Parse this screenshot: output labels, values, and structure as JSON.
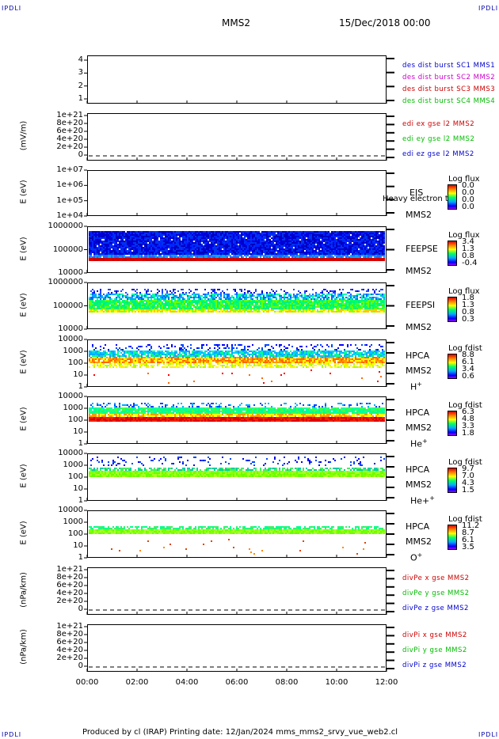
{
  "corners": {
    "tl": "IPDLI",
    "tr": "IPDLI",
    "bl": "IPDLI",
    "br": "IPDLI"
  },
  "header": {
    "spacecraft": "MMS2",
    "datetime": "15/Dec/2018 00:00"
  },
  "footer": "Produced by cl (IRAP)   Printing date: 12/Jan/2024   mms_mms2_srvy_vue_web2.cl",
  "chart_data": [
    {
      "id": "p1",
      "type": "line",
      "ylabel": "",
      "yticks": [
        "4",
        "3",
        "2",
        "1"
      ],
      "legend": [
        {
          "text": "des dist burst SC1 MMS1",
          "color": "#0000cc"
        },
        {
          "text": "des dist burst SC2 MMS2",
          "color": "#cc00cc"
        },
        {
          "text": "des dist burst SC3 MMS3",
          "color": "#cc0000"
        },
        {
          "text": "des dist burst SC4 MMS4",
          "color": "#00bb00"
        }
      ]
    },
    {
      "id": "p2",
      "type": "line",
      "ylabel": "(mV/m)",
      "yticks": [
        "1e+21",
        "8e+20",
        "6e+20",
        "4e+20",
        "2e+20",
        "0"
      ],
      "legend": [
        {
          "text": "edi ex gse l2 MMS2",
          "color": "#cc0000"
        },
        {
          "text": "edi ey gse l2 MMS2",
          "color": "#00bb00"
        },
        {
          "text": "edi ez gse l2 MMS2",
          "color": "#0000cc"
        }
      ]
    },
    {
      "id": "p3",
      "type": "heatmap",
      "ylabel": "E (eV)",
      "yticks": [
        "1e+07",
        "1e+06",
        "1e+05",
        "1e+04"
      ],
      "instrument": "EIS",
      "subtitle": "Heavy electron to",
      "sc": "MMS2",
      "cbar_title": "Log flux",
      "cbar": [
        "0.0",
        "0.0",
        "0.0",
        "0.0"
      ]
    },
    {
      "id": "p4",
      "type": "heatmap",
      "ylabel": "E (eV)",
      "yticks": [
        "1000000",
        "100000",
        "10000"
      ],
      "instrument": "FEEPSE",
      "sc": "MMS2",
      "cbar_title": "Log flux",
      "cbar": [
        "3.4",
        "1.3",
        "0.8",
        "-0.4"
      ]
    },
    {
      "id": "p5",
      "type": "heatmap",
      "ylabel": "E (eV)",
      "yticks": [
        "1000000",
        "100000",
        "10000"
      ],
      "instrument": "FEEPSI",
      "sc": "MMS2",
      "cbar_title": "Log flux",
      "cbar": [
        "1.8",
        "1.3",
        "0.8",
        "0.3"
      ]
    },
    {
      "id": "p6",
      "type": "heatmap",
      "ylabel": "E (eV)",
      "yticks": [
        "10000",
        "1000",
        "100",
        "10",
        "1"
      ],
      "instrument": "HPCA",
      "sc": "MMS2",
      "species": "H+",
      "cbar_title": "Log fdist",
      "cbar": [
        "8.8",
        "6.1",
        "3.4",
        "0.6"
      ]
    },
    {
      "id": "p7",
      "type": "heatmap",
      "ylabel": "E (eV)",
      "yticks": [
        "10000",
        "1000",
        "100",
        "10",
        "1"
      ],
      "instrument": "HPCA",
      "sc": "MMS2",
      "species": "He+",
      "cbar_title": "Log fdist",
      "cbar": [
        "6.3",
        "4.8",
        "3.3",
        "1.8"
      ]
    },
    {
      "id": "p8",
      "type": "heatmap",
      "ylabel": "E (eV)",
      "yticks": [
        "10000",
        "1000",
        "100",
        "10",
        "1"
      ],
      "instrument": "HPCA",
      "sc": "MMS2",
      "species": "He++",
      "cbar_title": "Log fdist",
      "cbar": [
        "9.7",
        "7.0",
        "4.3",
        "1.5"
      ]
    },
    {
      "id": "p9",
      "type": "heatmap",
      "ylabel": "E (eV)",
      "yticks": [
        "10000",
        "1000",
        "100",
        "10",
        "1"
      ],
      "instrument": "HPCA",
      "sc": "MMS2",
      "species": "O+",
      "cbar_title": "Log fdist",
      "cbar": [
        "11.2",
        "8.7",
        "6.1",
        "3.5"
      ]
    },
    {
      "id": "p10",
      "type": "line",
      "ylabel": "(nPa/km)",
      "yticks": [
        "1e+21",
        "8e+20",
        "6e+20",
        "4e+20",
        "2e+20",
        "0"
      ],
      "legend": [
        {
          "text": "divPe x gse MMS2",
          "color": "#cc0000"
        },
        {
          "text": "divPe y gse MMS2",
          "color": "#00bb00"
        },
        {
          "text": "divPe z gse MMS2",
          "color": "#0000cc"
        }
      ]
    },
    {
      "id": "p11",
      "type": "line",
      "ylabel": "(nPa/km)",
      "yticks": [
        "1e+21",
        "8e+20",
        "6e+20",
        "4e+20",
        "2e+20",
        "0"
      ],
      "legend": [
        {
          "text": "divPi x gse MMS2",
          "color": "#cc0000"
        },
        {
          "text": "divPi y gse MMS2",
          "color": "#00bb00"
        },
        {
          "text": "divPi z gse MMS2",
          "color": "#0000cc"
        }
      ]
    }
  ],
  "xaxis": {
    "ticks": [
      "00:00",
      "02:00",
      "04:00",
      "06:00",
      "08:00",
      "10:00",
      "12:00"
    ]
  }
}
